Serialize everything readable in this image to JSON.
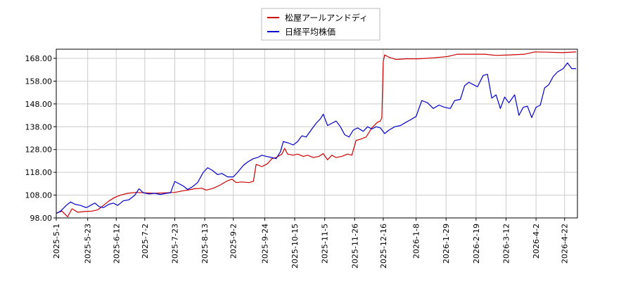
{
  "chart_data": {
    "type": "line",
    "title": "",
    "xlabel": "",
    "ylabel": "",
    "ylim": [
      98,
      172
    ],
    "xlim": [
      "2025-05-01",
      "2026-05-01"
    ],
    "yticks": [
      "98.00",
      "108.00",
      "118.00",
      "128.00",
      "138.00",
      "148.00",
      "158.00",
      "168.00"
    ],
    "ytick_values": [
      98,
      108,
      118,
      128,
      138,
      148,
      158,
      168
    ],
    "xticks": [
      "2025-5-1",
      "2025-5-23",
      "2025-6-12",
      "2025-7-2",
      "2025-7-23",
      "2025-8-13",
      "2025-9-2",
      "2025-9-24",
      "2025-10-15",
      "2025-11-5",
      "2025-11-26",
      "2025-12-16",
      "2026-1-8",
      "2026-1-29",
      "2026-2-19",
      "2026-3-12",
      "2026-4-2",
      "2026-4-22"
    ],
    "xtick_dates": [
      "2025-05-01",
      "2025-05-23",
      "2025-06-12",
      "2025-07-02",
      "2025-07-23",
      "2025-08-13",
      "2025-09-02",
      "2025-09-24",
      "2025-10-15",
      "2025-11-05",
      "2025-11-26",
      "2025-12-16",
      "2026-01-08",
      "2026-01-29",
      "2026-02-19",
      "2026-03-12",
      "2026-04-02",
      "2026-04-22"
    ],
    "grid": true,
    "legend_position": "top-center",
    "series": [
      {
        "name": "松屋アールアンドディ",
        "color": "#cc0000",
        "points": [
          [
            "2025-05-01",
            100.0
          ],
          [
            "2025-05-05",
            101.0
          ],
          [
            "2025-05-09",
            98.5
          ],
          [
            "2025-05-12",
            102.0
          ],
          [
            "2025-05-16",
            100.5
          ],
          [
            "2025-05-21",
            100.8
          ],
          [
            "2025-05-26",
            101.0
          ],
          [
            "2025-05-30",
            101.5
          ],
          [
            "2025-06-03",
            103.5
          ],
          [
            "2025-06-07",
            105.5
          ],
          [
            "2025-06-11",
            107.0
          ],
          [
            "2025-06-15",
            108.0
          ],
          [
            "2025-06-20",
            108.8
          ],
          [
            "2025-06-26",
            109.2
          ],
          [
            "2025-07-02",
            109.0
          ],
          [
            "2025-07-09",
            108.8
          ],
          [
            "2025-07-16",
            109.0
          ],
          [
            "2025-07-23",
            109.2
          ],
          [
            "2025-07-28",
            109.8
          ],
          [
            "2025-08-01",
            110.2
          ],
          [
            "2025-08-06",
            110.8
          ],
          [
            "2025-08-11",
            111.0
          ],
          [
            "2025-08-14",
            110.2
          ],
          [
            "2025-08-19",
            111.0
          ],
          [
            "2025-08-24",
            112.5
          ],
          [
            "2025-08-28",
            114.0
          ],
          [
            "2025-09-01",
            115.0
          ],
          [
            "2025-09-04",
            113.5
          ],
          [
            "2025-09-08",
            113.8
          ],
          [
            "2025-09-13",
            113.5
          ],
          [
            "2025-09-16",
            114.0
          ],
          [
            "2025-09-18",
            121.5
          ],
          [
            "2025-09-22",
            120.5
          ],
          [
            "2025-09-26",
            121.8
          ],
          [
            "2025-09-29",
            124.0
          ],
          [
            "2025-10-02",
            124.5
          ],
          [
            "2025-10-06",
            126.0
          ],
          [
            "2025-10-08",
            128.5
          ],
          [
            "2025-10-10",
            126.0
          ],
          [
            "2025-10-14",
            125.5
          ],
          [
            "2025-10-17",
            126.0
          ],
          [
            "2025-10-21",
            125.0
          ],
          [
            "2025-10-24",
            125.5
          ],
          [
            "2025-10-28",
            124.5
          ],
          [
            "2025-11-01",
            125.0
          ],
          [
            "2025-11-04",
            126.2
          ],
          [
            "2025-11-07",
            123.5
          ],
          [
            "2025-11-10",
            125.5
          ],
          [
            "2025-11-13",
            124.5
          ],
          [
            "2025-11-17",
            125.0
          ],
          [
            "2025-11-21",
            126.0
          ],
          [
            "2025-11-24",
            125.5
          ],
          [
            "2025-11-27",
            132.0
          ],
          [
            "2025-11-30",
            132.5
          ],
          [
            "2025-12-04",
            133.5
          ],
          [
            "2025-12-08",
            137.5
          ],
          [
            "2025-12-12",
            140.0
          ],
          [
            "2025-12-14",
            140.5
          ],
          [
            "2025-12-15",
            142.0
          ],
          [
            "2025-12-16",
            166.5
          ],
          [
            "2025-12-17",
            169.5
          ],
          [
            "2025-12-20",
            168.5
          ],
          [
            "2025-12-25",
            167.5
          ],
          [
            "2026-01-01",
            167.8
          ],
          [
            "2026-01-10",
            167.8
          ],
          [
            "2026-01-20",
            168.2
          ],
          [
            "2026-01-30",
            168.8
          ],
          [
            "2026-02-06",
            169.8
          ],
          [
            "2026-02-15",
            169.8
          ],
          [
            "2026-02-25",
            169.8
          ],
          [
            "2026-03-05",
            169.3
          ],
          [
            "2026-03-15",
            169.5
          ],
          [
            "2026-03-25",
            169.8
          ],
          [
            "2026-04-01",
            170.8
          ],
          [
            "2026-04-10",
            170.7
          ],
          [
            "2026-04-20",
            170.5
          ],
          [
            "2026-04-30",
            170.8
          ]
        ]
      },
      {
        "name": "日経平均株価",
        "color": "#0000cc",
        "points": [
          [
            "2025-05-01",
            100.0
          ],
          [
            "2025-05-04",
            101.0
          ],
          [
            "2025-05-08",
            103.5
          ],
          [
            "2025-05-11",
            105.0
          ],
          [
            "2025-05-14",
            104.0
          ],
          [
            "2025-05-18",
            103.5
          ],
          [
            "2025-05-22",
            102.5
          ],
          [
            "2025-05-25",
            103.5
          ],
          [
            "2025-05-28",
            104.5
          ],
          [
            "2025-05-31",
            103.0
          ],
          [
            "2025-06-03",
            102.5
          ],
          [
            "2025-06-07",
            104.0
          ],
          [
            "2025-06-10",
            104.5
          ],
          [
            "2025-06-13",
            103.5
          ],
          [
            "2025-06-17",
            105.5
          ],
          [
            "2025-06-21",
            106.0
          ],
          [
            "2025-06-25",
            108.0
          ],
          [
            "2025-06-28",
            110.8
          ],
          [
            "2025-07-01",
            109.0
          ],
          [
            "2025-07-05",
            108.5
          ],
          [
            "2025-07-09",
            108.8
          ],
          [
            "2025-07-13",
            108.3
          ],
          [
            "2025-07-17",
            108.8
          ],
          [
            "2025-07-20",
            109.0
          ],
          [
            "2025-07-23",
            114.0
          ],
          [
            "2025-07-26",
            113.0
          ],
          [
            "2025-07-29",
            112.0
          ],
          [
            "2025-08-01",
            110.5
          ],
          [
            "2025-08-04",
            111.5
          ],
          [
            "2025-08-08",
            113.5
          ],
          [
            "2025-08-12",
            118.0
          ],
          [
            "2025-08-15",
            120.0
          ],
          [
            "2025-08-18",
            119.0
          ],
          [
            "2025-08-22",
            117.0
          ],
          [
            "2025-08-25",
            117.5
          ],
          [
            "2025-08-29",
            116.0
          ],
          [
            "2025-09-02",
            116.0
          ],
          [
            "2025-09-05",
            118.0
          ],
          [
            "2025-09-09",
            121.0
          ],
          [
            "2025-09-12",
            122.5
          ],
          [
            "2025-09-16",
            124.0
          ],
          [
            "2025-09-19",
            124.5
          ],
          [
            "2025-09-22",
            125.5
          ],
          [
            "2025-09-25",
            125.0
          ],
          [
            "2025-09-29",
            124.5
          ],
          [
            "2025-10-02",
            124.0
          ],
          [
            "2025-10-05",
            127.0
          ],
          [
            "2025-10-07",
            131.5
          ],
          [
            "2025-10-10",
            131.0
          ],
          [
            "2025-10-14",
            130.0
          ],
          [
            "2025-10-17",
            131.5
          ],
          [
            "2025-10-20",
            134.0
          ],
          [
            "2025-10-23",
            133.5
          ],
          [
            "2025-10-27",
            137.0
          ],
          [
            "2025-10-30",
            139.5
          ],
          [
            "2025-11-02",
            141.5
          ],
          [
            "2025-11-04",
            143.5
          ],
          [
            "2025-11-07",
            138.5
          ],
          [
            "2025-11-10",
            139.5
          ],
          [
            "2025-11-13",
            140.5
          ],
          [
            "2025-11-16",
            138.0
          ],
          [
            "2025-11-19",
            134.5
          ],
          [
            "2025-11-22",
            133.5
          ],
          [
            "2025-11-25",
            136.5
          ],
          [
            "2025-11-28",
            137.5
          ],
          [
            "2025-12-02",
            136.0
          ],
          [
            "2025-12-05",
            138.0
          ],
          [
            "2025-12-08",
            137.0
          ],
          [
            "2025-12-11",
            138.0
          ],
          [
            "2025-12-14",
            137.5
          ],
          [
            "2025-12-17",
            135.0
          ],
          [
            "2025-12-20",
            136.5
          ],
          [
            "2025-12-24",
            138.0
          ],
          [
            "2025-12-28",
            138.5
          ],
          [
            "2026-01-01",
            140.0
          ],
          [
            "2026-01-04",
            141.0
          ],
          [
            "2026-01-08",
            142.5
          ],
          [
            "2026-01-12",
            149.5
          ],
          [
            "2026-01-16",
            148.5
          ],
          [
            "2026-01-20",
            146.0
          ],
          [
            "2026-01-24",
            147.5
          ],
          [
            "2026-01-28",
            146.5
          ],
          [
            "2026-02-01",
            146.0
          ],
          [
            "2026-02-04",
            149.5
          ],
          [
            "2026-02-08",
            150.0
          ],
          [
            "2026-02-11",
            156.0
          ],
          [
            "2026-02-14",
            157.5
          ],
          [
            "2026-02-17",
            156.5
          ],
          [
            "2026-02-20",
            155.5
          ],
          [
            "2026-02-24",
            160.5
          ],
          [
            "2026-02-27",
            161.0
          ],
          [
            "2026-03-02",
            150.5
          ],
          [
            "2026-03-05",
            152.0
          ],
          [
            "2026-03-08",
            146.0
          ],
          [
            "2026-03-11",
            151.0
          ],
          [
            "2026-03-14",
            148.5
          ],
          [
            "2026-03-18",
            152.0
          ],
          [
            "2026-03-21",
            143.0
          ],
          [
            "2026-03-24",
            146.5
          ],
          [
            "2026-03-27",
            147.0
          ],
          [
            "2026-03-30",
            142.0
          ],
          [
            "2026-04-02",
            146.5
          ],
          [
            "2026-04-05",
            147.5
          ],
          [
            "2026-04-08",
            155.0
          ],
          [
            "2026-04-11",
            156.5
          ],
          [
            "2026-04-14",
            160.0
          ],
          [
            "2026-04-17",
            162.0
          ],
          [
            "2026-04-21",
            163.5
          ],
          [
            "2026-04-24",
            166.0
          ],
          [
            "2026-04-27",
            163.5
          ],
          [
            "2026-04-30",
            163.5
          ]
        ]
      }
    ]
  }
}
